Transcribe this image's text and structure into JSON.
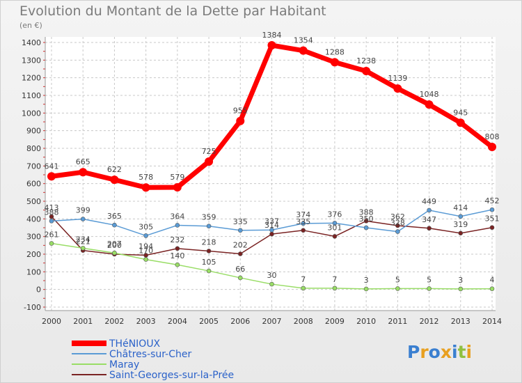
{
  "chart_data": {
    "type": "line",
    "title": "Evolution du Montant de la Dette par Habitant",
    "ylabel": "(en €)",
    "x": [
      "2000",
      "2001",
      "2002",
      "2003",
      "2004",
      "2005",
      "2006",
      "2007",
      "2008",
      "2009",
      "2010",
      "2011",
      "2012",
      "2013",
      "2014"
    ],
    "ylim": [
      -100,
      1400
    ],
    "yticks": [
      -100,
      0,
      100,
      200,
      300,
      400,
      500,
      600,
      700,
      800,
      900,
      1000,
      1100,
      1200,
      1300,
      1400
    ],
    "grid": true,
    "legend_position": "bottom-left",
    "series": [
      {
        "name": "THéNIOUX",
        "color": "#ff0000",
        "values": [
          641,
          665,
          622,
          578,
          579,
          725,
          955,
          1384,
          1354,
          1288,
          1238,
          1139,
          1048,
          945,
          808
        ]
      },
      {
        "name": "Châtres-sur-Cher",
        "color": "#5a9bd5",
        "values": [
          388,
          399,
          365,
          305,
          364,
          359,
          335,
          337,
          374,
          376,
          350,
          328,
          449,
          414,
          452
        ]
      },
      {
        "name": "Maray",
        "color": "#99dd66",
        "values": [
          261,
          234,
          207,
          170,
          140,
          105,
          66,
          30,
          7,
          7,
          3,
          5,
          5,
          3,
          4
        ]
      },
      {
        "name": "Saint-Georges-sur-la-Prée",
        "color": "#7a2323",
        "values": [
          413,
          221,
          200,
          194,
          232,
          218,
          202,
          314,
          335,
          301,
          388,
          362,
          347,
          319,
          351
        ]
      }
    ]
  },
  "brand": {
    "text": "Proxiti"
  }
}
